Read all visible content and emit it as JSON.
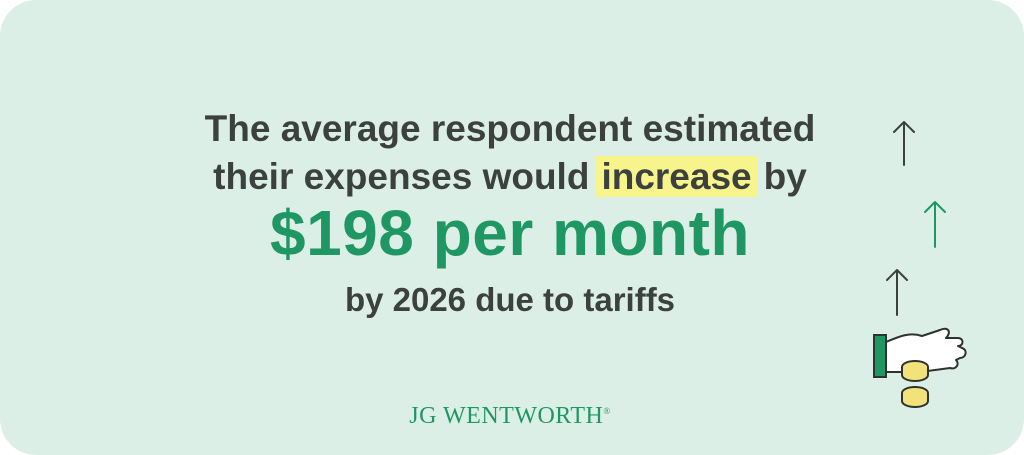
{
  "headline": {
    "line1": "The average respondent estimated",
    "line2_before": "their expenses would",
    "highlight": "increase",
    "line2_after": "by"
  },
  "stat": "$198 per month",
  "subline": "by 2026 due to tariffs",
  "brand": {
    "name": "JG WENTWORTH",
    "mark": "®"
  }
}
